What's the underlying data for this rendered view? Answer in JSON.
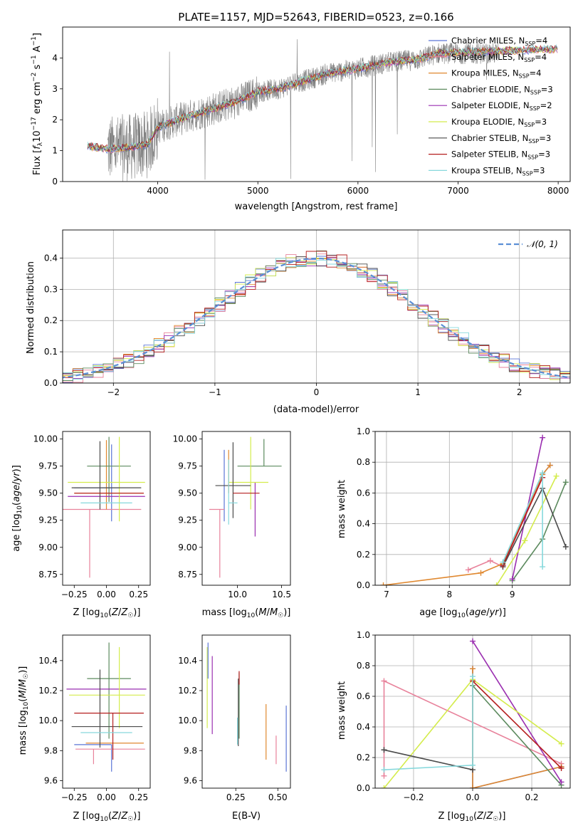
{
  "chart_data": [
    {
      "id": "spectrum",
      "type": "line",
      "title": "PLATE=1157, MJD=52643, FIBERID=0523, z=0.166",
      "xlabel": "wavelength [Angstrom, rest frame]",
      "ylabel": "Flux [f_λ 10^-17 erg cm^-2 s^-1 A^-1]",
      "xlim": [
        3050,
        8120
      ],
      "ylim": [
        0,
        5
      ],
      "xticks": [
        4000,
        5000,
        6000,
        7000,
        8000
      ],
      "yticks": [
        0,
        1,
        2,
        3,
        4
      ],
      "grid": false,
      "legend_position": "top-right",
      "legend": [
        {
          "label": "Chabrier MILES, N_SSP=4",
          "color": "#5b75d6"
        },
        {
          "label": "Salpeter MILES, N_SSP=4",
          "color": "#e8829b"
        },
        {
          "label": "Kroupa MILES, N_SSP=4",
          "color": "#e0882f"
        },
        {
          "label": "Chabrier ELODIE, N_SSP=3",
          "color": "#5c8a5e"
        },
        {
          "label": "Salpeter ELODIE, N_SSP=2",
          "color": "#9a2eb0"
        },
        {
          "label": "Kroupa ELODIE, N_SSP=3",
          "color": "#d4ec4c"
        },
        {
          "label": "Chabrier STELIB, N_SSP=3",
          "color": "#4a4a4a"
        },
        {
          "label": "Salpeter STELIB, N_SSP=3",
          "color": "#b51f1f"
        },
        {
          "label": "Kroupa STELIB, N_SSP=3",
          "color": "#86d8dc"
        }
      ],
      "data_color": "#808080",
      "model_anchor_wavelengths": [
        3300,
        3500,
        3700,
        3900,
        4000,
        4200,
        4500,
        4800,
        5000,
        5200,
        5500,
        5700,
        6000,
        6300,
        6600,
        6800
      ],
      "model_anchor_flux": [
        1.15,
        1.05,
        1.1,
        1.2,
        1.75,
        2.0,
        2.3,
        2.6,
        2.9,
        3.0,
        3.3,
        3.5,
        3.65,
        3.85,
        3.95,
        4.15
      ]
    },
    {
      "id": "residuals",
      "type": "histogram",
      "xlabel": "(data-model)/error",
      "ylabel": "Normed distribution",
      "xlim": [
        -2.5,
        2.5
      ],
      "ylim": [
        0,
        0.49
      ],
      "xticks": [
        -2,
        -1,
        0,
        1,
        2
      ],
      "yticks": [
        0.0,
        0.1,
        0.2,
        0.3,
        0.4
      ],
      "grid": true,
      "legend_position": "top-right",
      "legend": [
        {
          "label": "N(0,1)",
          "color": "#5b8fd6",
          "style": "dashed"
        }
      ],
      "bin_width": 0.1
    },
    {
      "id": "age-vs-Z",
      "type": "errorbar",
      "xlabel": "Z [log10(Z/Z☉)]",
      "ylabel": "age [log10(age/yr)]",
      "xlim": [
        -0.34,
        0.34
      ],
      "ylim": [
        8.65,
        10.07
      ],
      "xticks": [
        -0.25,
        0.0,
        0.25
      ],
      "yticks": [
        8.75,
        9.0,
        9.25,
        9.5,
        9.75,
        10.0
      ],
      "points": [
        {
          "series": "Chabrier MILES",
          "x": 0.04,
          "y": 9.55,
          "xerr": [
            0.29,
            0.06
          ],
          "yerr": [
            0.31,
            0.4
          ]
        },
        {
          "series": "Salpeter MILES",
          "x": -0.13,
          "y": 9.35,
          "xerr": [
            0.27,
            0.4
          ],
          "yerr": [
            0.63,
            0.0
          ]
        },
        {
          "series": "Kroupa MILES",
          "x": 0.0,
          "y": 9.5,
          "xerr": [
            0.25,
            0.29
          ],
          "yerr": [
            0.15,
            0.49
          ]
        },
        {
          "series": "Chabrier ELODIE",
          "x": 0.02,
          "y": 9.75,
          "xerr": [
            0.17,
            0.17
          ],
          "yerr": [
            0.33,
            0.27
          ]
        },
        {
          "series": "Salpeter ELODIE",
          "x": 0.0,
          "y": 9.47,
          "xerr": [
            0.3,
            0.3
          ],
          "yerr": [
            0.0,
            0.0
          ]
        },
        {
          "series": "Kroupa ELODIE",
          "x": 0.1,
          "y": 9.6,
          "xerr": [
            0.4,
            0.2
          ],
          "yerr": [
            0.36,
            0.42
          ]
        },
        {
          "series": "Chabrier STELIB",
          "x": -0.05,
          "y": 9.55,
          "xerr": [
            0.22,
            0.32
          ],
          "yerr": [
            0.2,
            0.43
          ]
        },
        {
          "series": "Salpeter STELIB",
          "x": 0.05,
          "y": 9.5,
          "xerr": [
            0.3,
            0.24
          ],
          "yerr": [
            0.0,
            0.0
          ]
        },
        {
          "series": "Kroupa STELIB",
          "x": 0.0,
          "y": 9.41,
          "xerr": [
            0.2,
            0.2
          ],
          "yerr": [
            0.0,
            0.0
          ]
        }
      ]
    },
    {
      "id": "age-vs-mass",
      "type": "errorbar",
      "xlabel": "mass [log10(M/M☉)]",
      "ylabel": "",
      "xlim": [
        9.6,
        10.6
      ],
      "ylim": [
        8.65,
        10.07
      ],
      "xticks": [
        10.0,
        10.5
      ],
      "yticks": [
        8.75,
        9.0,
        9.25,
        9.5,
        9.75,
        10.0
      ],
      "points": [
        {
          "series": "Chabrier MILES",
          "x": 9.85,
          "y": 9.5,
          "xerr": [
            0.0,
            0.0
          ],
          "yerr": [
            0.26,
            0.4
          ]
        },
        {
          "series": "Salpeter MILES",
          "x": 9.8,
          "y": 9.35,
          "xerr": [
            0.12,
            0.05
          ],
          "yerr": [
            0.63,
            0.0
          ]
        },
        {
          "series": "Kroupa MILES",
          "x": 9.9,
          "y": 9.5,
          "xerr": [
            0.0,
            0.0
          ],
          "yerr": [
            0.0,
            0.4
          ]
        },
        {
          "series": "Chabrier ELODIE",
          "x": 10.3,
          "y": 9.75,
          "xerr": [
            0.3,
            0.2
          ],
          "yerr": [
            0.0,
            0.25
          ]
        },
        {
          "series": "Salpeter ELODIE",
          "x": 10.2,
          "y": 9.6,
          "xerr": [
            0.0,
            0.0
          ],
          "yerr": [
            0.5,
            0.0
          ]
        },
        {
          "series": "Kroupa ELODIE",
          "x": 10.15,
          "y": 9.6,
          "xerr": [
            0.25,
            0.2
          ],
          "yerr": [
            0.25,
            0.42
          ]
        },
        {
          "series": "Chabrier STELIB",
          "x": 9.95,
          "y": 9.57,
          "xerr": [
            0.2,
            0.2
          ],
          "yerr": [
            0.3,
            0.4
          ]
        },
        {
          "series": "Salpeter STELIB",
          "x": 10.05,
          "y": 9.5,
          "xerr": [
            0.1,
            0.2
          ],
          "yerr": [
            0.0,
            0.0
          ]
        },
        {
          "series": "Kroupa STELIB",
          "x": 9.9,
          "y": 9.41,
          "xerr": [
            0.0,
            0.1
          ],
          "yerr": [
            0.2,
            0.4
          ]
        }
      ]
    },
    {
      "id": "weight-vs-age",
      "type": "line",
      "xlabel": "age [log10(age/yr)]",
      "ylabel": "mass weight",
      "xlim": [
        6.82,
        9.92
      ],
      "ylim": [
        0.0,
        1.0
      ],
      "xticks": [
        7,
        8,
        9
      ],
      "yticks": [
        0.0,
        0.2,
        0.4,
        0.6,
        0.8,
        1.0
      ],
      "grid": true,
      "series": [
        {
          "name": "Chabrier MILES",
          "x": [
            8.85,
            9.48,
            9.6
          ],
          "y": [
            0.13,
            0.72,
            0.78
          ]
        },
        {
          "name": "Salpeter MILES",
          "x": [
            8.3,
            8.65,
            8.85,
            9.48
          ],
          "y": [
            0.1,
            0.16,
            0.12,
            0.7
          ]
        },
        {
          "name": "Kroupa MILES",
          "x": [
            6.95,
            8.5,
            8.85,
            9.48,
            9.6
          ],
          "y": [
            0.0,
            0.08,
            0.14,
            0.72,
            0.78
          ]
        },
        {
          "name": "Chabrier ELODIE",
          "x": [
            9.0,
            9.48,
            9.85
          ],
          "y": [
            0.03,
            0.3,
            0.67
          ]
        },
        {
          "name": "Salpeter ELODIE",
          "x": [
            9.0,
            9.48
          ],
          "y": [
            0.04,
            0.96
          ]
        },
        {
          "name": "Kroupa ELODIE",
          "x": [
            8.75,
            9.2,
            9.7
          ],
          "y": [
            0.0,
            0.29,
            0.71
          ]
        },
        {
          "name": "Chabrier STELIB",
          "x": [
            8.85,
            9.48,
            9.85
          ],
          "y": [
            0.12,
            0.63,
            0.25
          ]
        },
        {
          "name": "Salpeter STELIB",
          "x": [
            8.85,
            9.48
          ],
          "y": [
            0.13,
            0.7
          ]
        },
        {
          "name": "Kroupa STELIB",
          "x": [
            8.85,
            9.48,
            9.48
          ],
          "y": [
            0.15,
            0.73,
            0.12
          ]
        }
      ]
    },
    {
      "id": "mass-vs-Z",
      "type": "errorbar",
      "xlabel": "Z [log10(Z/Z☉)]",
      "ylabel": "mass [log10(M/M☉)]",
      "xlim": [
        -0.34,
        0.34
      ],
      "ylim": [
        9.55,
        10.57
      ],
      "xticks": [
        -0.25,
        0.0,
        0.25
      ],
      "yticks": [
        9.6,
        9.8,
        10.0,
        10.2,
        10.4
      ],
      "points": [
        {
          "series": "Chabrier MILES",
          "x": 0.04,
          "y": 9.84,
          "xerr": [
            0.29,
            0.0
          ],
          "yerr": [
            0.18,
            0.0
          ]
        },
        {
          "series": "Salpeter MILES",
          "x": -0.1,
          "y": 9.81,
          "xerr": [
            0.14,
            0.4
          ],
          "yerr": [
            0.1,
            0.0
          ]
        },
        {
          "series": "Kroupa MILES",
          "x": 0.04,
          "y": 9.85,
          "xerr": [
            0.2,
            0.25
          ],
          "yerr": [
            0.0,
            0.0
          ]
        },
        {
          "series": "Chabrier ELODIE",
          "x": 0.02,
          "y": 10.28,
          "xerr": [
            0.17,
            0.17
          ],
          "yerr": [
            0.4,
            0.24
          ]
        },
        {
          "series": "Salpeter ELODIE",
          "x": 0.0,
          "y": 10.21,
          "xerr": [
            0.31,
            0.31
          ],
          "yerr": [
            0.0,
            0.0
          ]
        },
        {
          "series": "Kroupa ELODIE",
          "x": 0.1,
          "y": 10.17,
          "xerr": [
            0.39,
            0.2
          ],
          "yerr": [
            0.22,
            0.32
          ]
        },
        {
          "series": "Chabrier STELIB",
          "x": -0.05,
          "y": 9.96,
          "xerr": [
            0.22,
            0.33
          ],
          "yerr": [
            0.14,
            0.38
          ]
        },
        {
          "series": "Salpeter STELIB",
          "x": 0.05,
          "y": 10.05,
          "xerr": [
            0.3,
            0.24
          ],
          "yerr": [
            0.31,
            0.0
          ]
        },
        {
          "series": "Kroupa STELIB",
          "x": 0.0,
          "y": 9.92,
          "xerr": [
            0.2,
            0.2
          ],
          "yerr": [
            0.0,
            0.0
          ]
        }
      ]
    },
    {
      "id": "mass-vs-ebv",
      "type": "errorbar",
      "xlabel": "E(B-V)",
      "ylabel": "",
      "xlim": [
        0.05,
        0.575
      ],
      "ylim": [
        9.55,
        10.57
      ],
      "xticks": [
        0.25,
        0.5
      ],
      "yticks": [
        9.6,
        9.8,
        10.0,
        10.2,
        10.4
      ],
      "points": [
        {
          "series": "Chabrier MILES",
          "x": 0.55,
          "y": 9.84,
          "xerr": [
            0.0,
            0.0
          ],
          "yerr": [
            0.18,
            0.26
          ]
        },
        {
          "series": "Salpeter MILES",
          "x": 0.49,
          "y": 9.81,
          "xerr": [
            0.0,
            0.0
          ],
          "yerr": [
            0.1,
            0.09
          ]
        },
        {
          "series": "Kroupa MILES",
          "x": 0.43,
          "y": 9.85,
          "xerr": [
            0.0,
            0.0
          ],
          "yerr": [
            0.11,
            0.26
          ]
        },
        {
          "series": "Chabrier ELODIE",
          "x": 0.27,
          "y": 10.28,
          "xerr": [
            0.0,
            0.0
          ],
          "yerr": [
            0.4,
            0.04
          ]
        },
        {
          "series": "Salpeter ELODIE",
          "x": 0.11,
          "y": 10.21,
          "xerr": [
            0.0,
            0.0
          ],
          "yerr": [
            0.3,
            0.22
          ]
        },
        {
          "series": "Kroupa ELODIE",
          "x": 0.08,
          "y": 10.17,
          "xerr": [
            0.0,
            0.0
          ],
          "yerr": [
            0.22,
            0.32
          ]
        },
        {
          "series": "Chabrier STELIB",
          "x": 0.265,
          "y": 10.28,
          "xerr": [
            0.0,
            0.0
          ],
          "yerr": [
            0.45,
            0.0
          ]
        },
        {
          "series": "Salpeter STELIB",
          "x": 0.27,
          "y": 10.28,
          "xerr": [
            0.0,
            0.0
          ],
          "yerr": [
            0.04,
            0.05
          ]
        },
        {
          "series": "Kroupa STELIB",
          "x": 0.26,
          "y": 9.92,
          "xerr": [
            0.0,
            0.0
          ],
          "yerr": [
            0.08,
            0.1
          ]
        },
        {
          "series": "Chabrier MILES",
          "x": 0.085,
          "y": 10.28,
          "xerr": [
            0.0,
            0.0
          ],
          "yerr": [
            0.0,
            0.24
          ]
        }
      ]
    },
    {
      "id": "weight-vs-Z",
      "type": "line",
      "xlabel": "Z [log10(Z/Z☉)]",
      "ylabel": "mass weight",
      "xlim": [
        -0.33,
        0.33
      ],
      "ylim": [
        0.0,
        1.0
      ],
      "xticks": [
        -0.2,
        0.0,
        0.2
      ],
      "yticks": [
        0.0,
        0.2,
        0.4,
        0.6,
        0.8,
        1.0
      ],
      "grid": true,
      "series": [
        {
          "name": "Chabrier MILES",
          "x": [
            0.0,
            0.0,
            0.3
          ],
          "y": [
            0.78,
            0.0,
            0.14
          ]
        },
        {
          "name": "Salpeter MILES",
          "x": [
            -0.3,
            -0.3,
            0.3
          ],
          "y": [
            0.08,
            0.7,
            0.16
          ]
        },
        {
          "name": "Kroupa MILES",
          "x": [
            0.0,
            0.0,
            0.3
          ],
          "y": [
            0.78,
            0.0,
            0.14
          ]
        },
        {
          "name": "Chabrier ELODIE",
          "x": [
            0.0,
            0.3
          ],
          "y": [
            0.67,
            0.02
          ]
        },
        {
          "name": "Salpeter ELODIE",
          "x": [
            0.0,
            0.3
          ],
          "y": [
            0.96,
            0.04
          ]
        },
        {
          "name": "Kroupa ELODIE",
          "x": [
            -0.3,
            0.0,
            0.3
          ],
          "y": [
            0.0,
            0.71,
            0.29
          ]
        },
        {
          "name": "Chabrier STELIB",
          "x": [
            -0.3,
            0.0
          ],
          "y": [
            0.25,
            0.12
          ]
        },
        {
          "name": "Salpeter STELIB",
          "x": [
            0.0,
            0.3
          ],
          "y": [
            0.7,
            0.13
          ]
        },
        {
          "name": "Kroupa STELIB",
          "x": [
            -0.3,
            0.0,
            0.0
          ],
          "y": [
            0.12,
            0.15,
            0.73
          ]
        }
      ]
    }
  ]
}
